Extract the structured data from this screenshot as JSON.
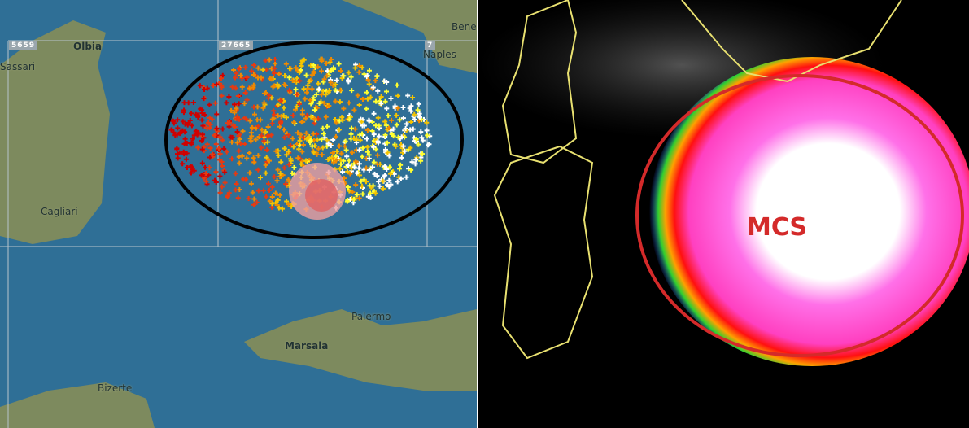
{
  "lightning_map": {
    "cities": [
      {
        "name": "Olbia"
      },
      {
        "name": "Sassari"
      },
      {
        "name": "Naples"
      },
      {
        "name": "Bene"
      },
      {
        "name": "Cagliari"
      },
      {
        "name": "Palermo"
      },
      {
        "name": "Marsala"
      },
      {
        "name": "Bizerte"
      }
    ],
    "grid_counts": [
      "5659",
      "27665",
      "7"
    ],
    "colors": {
      "sea": "#2f6f96",
      "land": "#7d8a5e",
      "grid": "#b8c4cc",
      "ellipse": "#000000"
    },
    "stroke_age_colors": [
      "#d00000",
      "#e83a10",
      "#f08a00",
      "#f5c400",
      "#ffff30",
      "#ffffff"
    ]
  },
  "satellite_image": {
    "label": "MCS",
    "colors": {
      "background": "#000000",
      "coastline": "#e8e070",
      "ellipse": "#d42a2a",
      "core": "#ffffff",
      "cold_tops": "#ff70e8"
    }
  }
}
